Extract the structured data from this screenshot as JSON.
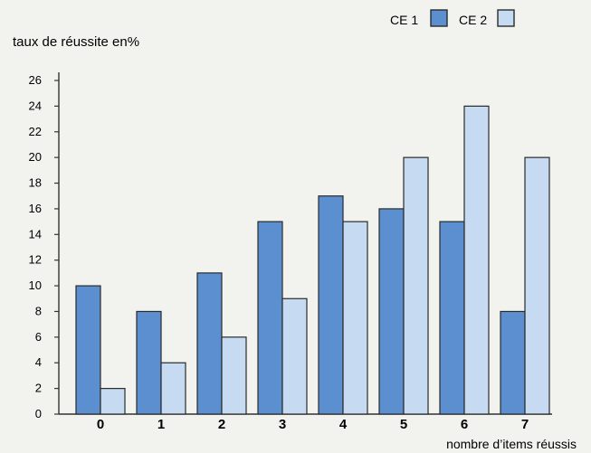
{
  "chart_data": {
    "type": "bar",
    "ylabel": "taux de réussite en%",
    "xlabel": "nombre d’items réussis",
    "categories": [
      "0",
      "1",
      "2",
      "3",
      "4",
      "5",
      "6",
      "7"
    ],
    "series": [
      {
        "name": "CE 1",
        "values": [
          10,
          8,
          11,
          15,
          17,
          16,
          15,
          8
        ],
        "color": "#5b8fd0"
      },
      {
        "name": "CE 2",
        "values": [
          2,
          4,
          6,
          9,
          15,
          20,
          24,
          20
        ],
        "color": "#c6dbf2"
      }
    ],
    "ylim": [
      0,
      26
    ],
    "yticks": [
      0,
      2,
      4,
      6,
      8,
      10,
      12,
      14,
      16,
      18,
      20,
      22,
      24,
      26
    ],
    "grid": false,
    "legend": "top-right"
  }
}
